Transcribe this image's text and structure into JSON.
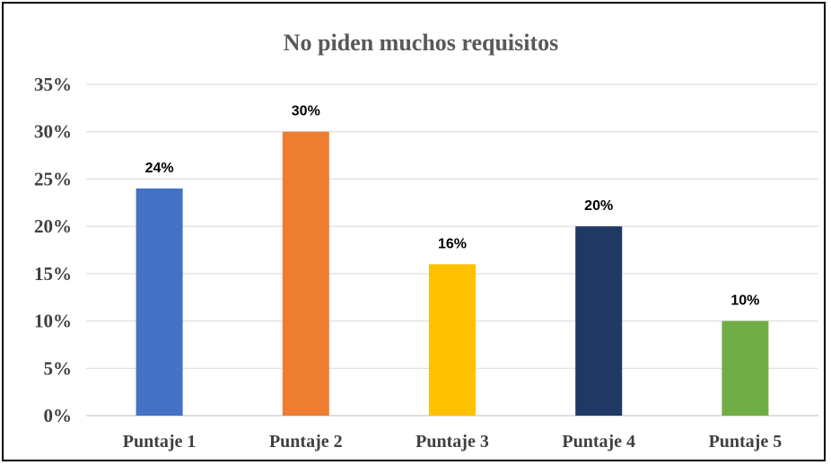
{
  "chart_data": {
    "type": "bar",
    "title": "No piden muchos requisitos",
    "xlabel": "",
    "ylabel": "",
    "categories": [
      "Puntaje 1",
      "Puntaje 2",
      "Puntaje 3",
      "Puntaje 4",
      "Puntaje 5"
    ],
    "values": [
      24,
      30,
      16,
      20,
      10
    ],
    "data_labels": [
      "24%",
      "30%",
      "16%",
      "20%",
      "10%"
    ],
    "colors": [
      "#4472C4",
      "#ED7D31",
      "#FFC000",
      "#203864",
      "#70AD47"
    ],
    "yticks": [
      0,
      5,
      10,
      15,
      20,
      25,
      30,
      35
    ],
    "ytick_labels": [
      "0%",
      "5%",
      "10%",
      "15%",
      "20%",
      "25%",
      "30%",
      "35%"
    ],
    "ylim": [
      0,
      35
    ],
    "grid": true,
    "legend": "none"
  }
}
